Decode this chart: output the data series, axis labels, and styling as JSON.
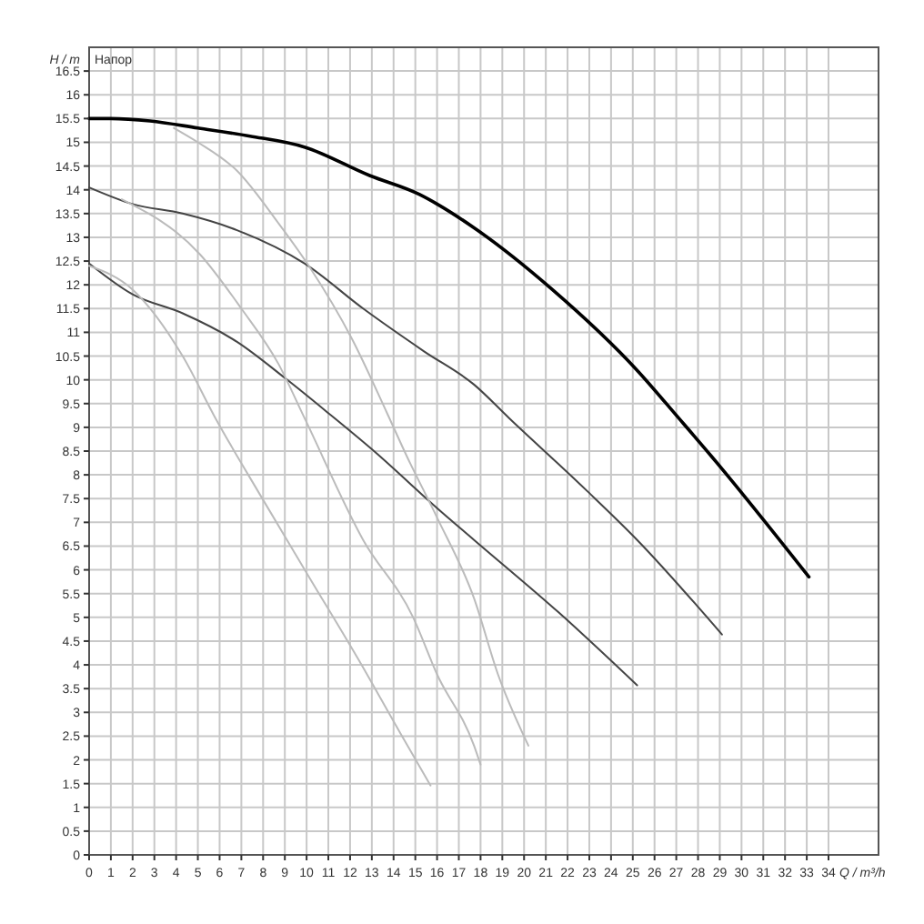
{
  "chart_data": {
    "type": "line",
    "title": "Напор",
    "xlabel": "Q / m³/h",
    "ylabel": "H / m",
    "xlim": [
      0,
      36.3
    ],
    "ylim": [
      0,
      17
    ],
    "xticks": [
      0,
      1,
      2,
      3,
      4,
      5,
      6,
      7,
      8,
      9,
      10,
      11,
      12,
      13,
      14,
      15,
      16,
      17,
      18,
      19,
      20,
      21,
      22,
      23,
      24,
      25,
      26,
      27,
      28,
      29,
      30,
      31,
      32,
      33,
      34
    ],
    "yticks": [
      0,
      0.5,
      1,
      1.5,
      2,
      2.5,
      3,
      3.5,
      4,
      4.5,
      5,
      5.5,
      6,
      6.5,
      7,
      7.5,
      8,
      8.5,
      9,
      9.5,
      10,
      10.5,
      11,
      11.5,
      12,
      12.5,
      13,
      13.5,
      14,
      14.5,
      15,
      15.5,
      16,
      16.5
    ],
    "grid": true,
    "marker": "none",
    "line_style": "solid",
    "series": [
      {
        "color": "#000000",
        "x": [
          0,
          1,
          2.8,
          5,
          7.4,
          9.9,
          12.9,
          15.2,
          16,
          17.7,
          21.3,
          25.2,
          27.1,
          28.6,
          33.1
        ],
        "values": [
          15.5,
          15.5,
          15.45,
          15.3,
          15.13,
          14.9,
          14.3,
          13.9,
          13.7,
          13.2,
          11.9,
          10.2,
          9.2,
          8.4,
          5.85
        ]
      },
      {
        "color": "#444444",
        "x": [
          0,
          2,
          4.3,
          6.8,
          9.9,
          12.6,
          15.4,
          17.7,
          19.3,
          22.9,
          25.2,
          29.1
        ],
        "values": [
          14.05,
          13.7,
          13.5,
          13.15,
          12.45,
          11.5,
          10.6,
          9.9,
          9.2,
          7.66,
          6.63,
          4.64
        ]
      },
      {
        "color": "#444444",
        "x": [
          0,
          2,
          4.3,
          6.8,
          9,
          11,
          13.1,
          16,
          17.7,
          21.6,
          25.2
        ],
        "values": [
          12.45,
          11.8,
          11.4,
          10.8,
          10.04,
          9.3,
          8.5,
          7.3,
          6.63,
          5.1,
          3.57
        ]
      },
      {
        "color": "#bbbbbb",
        "x": [
          3.9,
          5,
          6.8,
          8.7,
          10.1,
          12.1,
          13.7,
          14.6,
          16,
          17.7,
          18.8,
          20.2
        ],
        "values": [
          15.3,
          15,
          14.4,
          13.3,
          12.4,
          10.85,
          9.3,
          8.4,
          7.1,
          5.4,
          3.8,
          2.3
        ]
      },
      {
        "color": "#bbbbbb",
        "x": [
          1.5,
          5.1,
          7,
          8.7,
          9.9,
          12.6,
          14.9,
          16,
          17.7,
          18
        ],
        "values": [
          13.8,
          12.64,
          11.5,
          10.34,
          9.2,
          6.63,
          5,
          3.8,
          2.3,
          1.9
        ]
      },
      {
        "color": "#bbbbbb",
        "x": [
          0,
          2,
          4.3,
          5.8,
          7.9,
          10.1,
          12.4,
          14.3,
          15.7
        ],
        "values": [
          12.4,
          11.9,
          10.5,
          9.2,
          7.55,
          5.86,
          4.1,
          2.57,
          1.46
        ]
      }
    ]
  }
}
